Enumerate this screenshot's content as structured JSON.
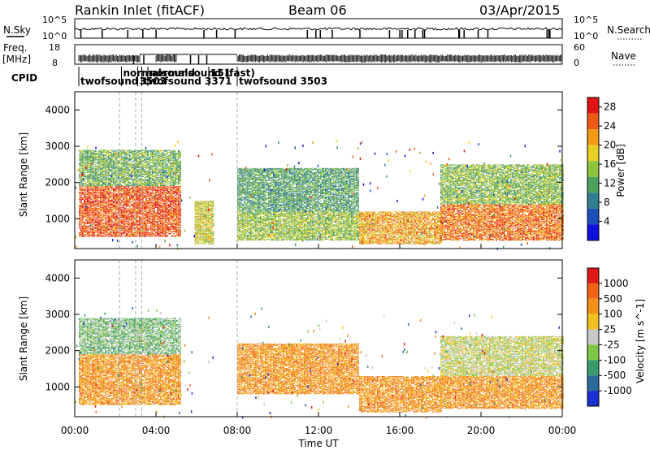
{
  "header": {
    "title": "Rankin Inlet (fitACF)",
    "beam": "Beam 06",
    "date": "03/Apr/2015"
  },
  "status_panels": {
    "nsky_label": "N.Sky",
    "nsearch_label": "N.Search",
    "freq_label": "Freq.",
    "freq_unit": "[MHz]",
    "nave_label": "Nave",
    "cpid_label": "CPID",
    "noise_ticks": [
      "10^5",
      "10^0"
    ],
    "noise_right_ticks": [
      "10^5",
      "10^0"
    ],
    "freq_ticks": [
      "18",
      "8"
    ],
    "nave_ticks": [
      "60",
      "0"
    ],
    "cpid_labels": [
      {
        "text": "twofsound",
        "t": 0.2
      },
      {
        "text": "normalsound",
        "t": 2.3
      },
      {
        "text": "3503",
        "t": 3.1
      },
      {
        "text": "twofsound 3371",
        "t": 3.3
      },
      {
        "text": "normalsound (fast)",
        "t": 3.6
      },
      {
        "text": "151",
        "t": 6.6
      },
      {
        "text": "twofsound 3503",
        "t": 8.0
      }
    ]
  },
  "axes": {
    "x_ticks": [
      "00:00",
      "04:00",
      "08:00",
      "12:00",
      "16:00",
      "20:00",
      "00:00"
    ],
    "x_label": "Time UT",
    "y_label": "Slant Range [km]",
    "y_ticks": [
      "1000",
      "2000",
      "3000",
      "4000"
    ]
  },
  "chart_data": [
    {
      "type": "heatmap",
      "name": "power",
      "x_range_hours": [
        0,
        24
      ],
      "y_range_km": [
        180,
        4500
      ],
      "colorbar_label": "Power [dB]",
      "colorbar_ticks": [
        "4",
        "8",
        "12",
        "16",
        "20",
        "24",
        "28"
      ],
      "colorbar_range": [
        0,
        30
      ],
      "colors": [
        "#1010e0",
        "#1850b8",
        "#2f7f8f",
        "#4aa15c",
        "#8ec43a",
        "#e8d020",
        "#f39a16",
        "#ee5a14",
        "#e01414"
      ],
      "bands": [
        {
          "t0": 0.2,
          "t1": 5.2,
          "r0": 500,
          "r1": 1900,
          "level": 27
        },
        {
          "t0": 0.2,
          "t1": 5.2,
          "r0": 1900,
          "r1": 2900,
          "level": 13
        },
        {
          "t0": 5.9,
          "t1": 6.8,
          "r0": 300,
          "r1": 1500,
          "level": 18
        },
        {
          "t0": 8.0,
          "t1": 14.0,
          "r0": 1200,
          "r1": 2400,
          "level": 11
        },
        {
          "t0": 8.0,
          "t1": 14.0,
          "r0": 400,
          "r1": 1200,
          "level": 15
        },
        {
          "t0": 14.0,
          "t1": 18.0,
          "r0": 300,
          "r1": 1200,
          "level": 22
        },
        {
          "t0": 18.0,
          "t1": 24.0,
          "r0": 400,
          "r1": 1400,
          "level": 25
        },
        {
          "t0": 18.0,
          "t1": 24.0,
          "r0": 1400,
          "r1": 2500,
          "level": 14
        }
      ]
    },
    {
      "type": "heatmap",
      "name": "velocity",
      "x_range_hours": [
        0,
        24
      ],
      "y_range_km": [
        180,
        4500
      ],
      "colorbar_label": "Velocity [m s^-1]",
      "colorbar_ticks": [
        "1000",
        "500",
        "100",
        "25",
        "-25",
        "-100",
        "-500",
        "-1000"
      ],
      "colors": [
        "#1a2fd0",
        "#2a6b9a",
        "#3b9a6b",
        "#7fc845",
        "#c8c8c8",
        "#f0c020",
        "#f29018",
        "#ef6418",
        "#e01818"
      ],
      "bands": [
        {
          "t0": 0.2,
          "t1": 5.2,
          "r0": 500,
          "r1": 1900,
          "level": 6
        },
        {
          "t0": 0.2,
          "t1": 5.2,
          "r0": 1900,
          "r1": 2900,
          "level": 3
        },
        {
          "t0": 8.0,
          "t1": 14.0,
          "r0": 800,
          "r1": 2200,
          "level": 6
        },
        {
          "t0": 14.0,
          "t1": 18.0,
          "r0": 300,
          "r1": 1300,
          "level": 6
        },
        {
          "t0": 18.0,
          "t1": 24.0,
          "r0": 400,
          "r1": 1300,
          "level": 6
        },
        {
          "t0": 18.0,
          "t1": 24.0,
          "r0": 1300,
          "r1": 2400,
          "level": 4
        }
      ]
    }
  ]
}
